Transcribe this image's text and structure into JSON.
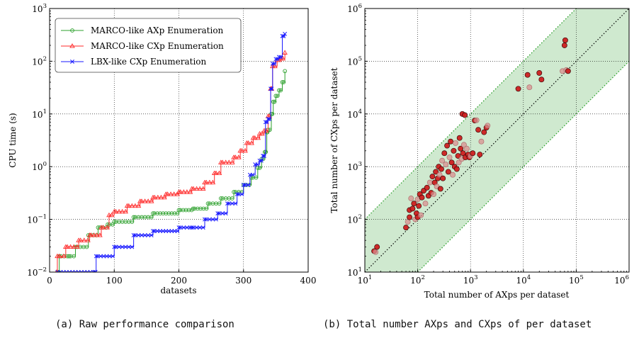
{
  "captions": {
    "a": "(a) Raw performance comparison",
    "b": "(b) Total number AXps and CXps of per dataset"
  },
  "chart_data": [
    {
      "type": "line",
      "xlabel": "datasets",
      "ylabel": "CPU time (s)",
      "xlim": [
        0,
        400
      ],
      "ylim": [
        0.01,
        1000
      ],
      "yscale": "log",
      "xticks": [
        "0",
        "100",
        "200",
        "300",
        "400"
      ],
      "yticks": [
        {
          "base": "10",
          "exp": "−2"
        },
        {
          "base": "10",
          "exp": "−1"
        },
        {
          "base": "10",
          "exp": "0"
        },
        {
          "base": "10",
          "exp": "1"
        },
        {
          "base": "10",
          "exp": "2"
        },
        {
          "base": "10",
          "exp": "3"
        }
      ],
      "grid": true,
      "legend_position": "top-left",
      "series": [
        {
          "name": "MARCO-like AXp Enumeration",
          "color": "#2ca02c",
          "marker": "circle",
          "points": [
            [
              10,
              0.01
            ],
            [
              14,
              0.01
            ],
            [
              15,
              0.02
            ],
            [
              30,
              0.02
            ],
            [
              40,
              0.03
            ],
            [
              60,
              0.05
            ],
            [
              75,
              0.07
            ],
            [
              90,
              0.08
            ],
            [
              100,
              0.09
            ],
            [
              130,
              0.11
            ],
            [
              160,
              0.13
            ],
            [
              200,
              0.15
            ],
            [
              222,
              0.16
            ],
            [
              245,
              0.2
            ],
            [
              265,
              0.25
            ],
            [
              285,
              0.33
            ],
            [
              300,
              0.45
            ],
            [
              312,
              0.62
            ],
            [
              322,
              0.95
            ],
            [
              328,
              1.4
            ],
            [
              333,
              1.9
            ],
            [
              336,
              4.5
            ],
            [
              338,
              5
            ],
            [
              343,
              10
            ],
            [
              346,
              17
            ],
            [
              350,
              22
            ],
            [
              355,
              28
            ],
            [
              360,
              40
            ],
            [
              364,
              65
            ]
          ]
        },
        {
          "name": "MARCO-like CXp Enumeration",
          "color": "#ff2a2a",
          "marker": "triangle",
          "points": [
            [
              10,
              0.01
            ],
            [
              12,
              0.02
            ],
            [
              25,
              0.03
            ],
            [
              45,
              0.04
            ],
            [
              62,
              0.05
            ],
            [
              80,
              0.07
            ],
            [
              92,
              0.12
            ],
            [
              100,
              0.14
            ],
            [
              120,
              0.18
            ],
            [
              140,
              0.22
            ],
            [
              160,
              0.26
            ],
            [
              180,
              0.3
            ],
            [
              200,
              0.33
            ],
            [
              220,
              0.38
            ],
            [
              240,
              0.5
            ],
            [
              255,
              0.75
            ],
            [
              265,
              1.2
            ],
            [
              285,
              1.5
            ],
            [
              295,
              2
            ],
            [
              305,
              2.8
            ],
            [
              315,
              3.5
            ],
            [
              325,
              4.2
            ],
            [
              332,
              4.8
            ],
            [
              338,
              9
            ],
            [
              342,
              30
            ],
            [
              345,
              80
            ],
            [
              352,
              105
            ],
            [
              358,
              112
            ],
            [
              364,
              145
            ]
          ]
        },
        {
          "name": "LBX-like CXp Enumeration",
          "color": "#1a1aff",
          "marker": "x",
          "points": [
            [
              10,
              0.01
            ],
            [
              70,
              0.01
            ],
            [
              72,
              0.02
            ],
            [
              100,
              0.03
            ],
            [
              130,
              0.05
            ],
            [
              160,
              0.06
            ],
            [
              200,
              0.07
            ],
            [
              220,
              0.07
            ],
            [
              240,
              0.1
            ],
            [
              260,
              0.13
            ],
            [
              275,
              0.2
            ],
            [
              290,
              0.3
            ],
            [
              300,
              0.45
            ],
            [
              310,
              0.7
            ],
            [
              318,
              1.1
            ],
            [
              325,
              1.3
            ],
            [
              330,
              1.6
            ],
            [
              334,
              7
            ],
            [
              338,
              8
            ],
            [
              342,
              30
            ],
            [
              345,
              90
            ],
            [
              350,
              110
            ],
            [
              355,
              120
            ],
            [
              360,
              300
            ],
            [
              364,
              330
            ]
          ]
        }
      ]
    },
    {
      "type": "scatter",
      "xlabel": "Total number of AXps per dataset",
      "ylabel": "Total number of CXps per dataset",
      "xlim": [
        10,
        1000000
      ],
      "ylim": [
        10,
        1000000
      ],
      "xscale": "log",
      "yscale": "log",
      "xticks": [
        {
          "base": "10",
          "exp": "1"
        },
        {
          "base": "10",
          "exp": "2"
        },
        {
          "base": "10",
          "exp": "3"
        },
        {
          "base": "10",
          "exp": "4"
        },
        {
          "base": "10",
          "exp": "5"
        },
        {
          "base": "10",
          "exp": "6"
        }
      ],
      "yticks": [
        {
          "base": "10",
          "exp": "1"
        },
        {
          "base": "10",
          "exp": "2"
        },
        {
          "base": "10",
          "exp": "3"
        },
        {
          "base": "10",
          "exp": "4"
        },
        {
          "base": "10",
          "exp": "5"
        },
        {
          "base": "10",
          "exp": "6"
        }
      ],
      "grid": true,
      "reference_lines": [
        "y = x",
        "y = 10x",
        "y = x/10"
      ],
      "shaded_band": "x/10 ≤ y ≤ 10x",
      "colors": {
        "band": "#cfe9cf",
        "band_edge": "#2ca02c",
        "point": "#cc1f1f"
      },
      "points": [
        [
          15,
          25
        ],
        [
          16,
          24
        ],
        [
          17,
          30
        ],
        [
          60,
          70
        ],
        [
          65,
          90
        ],
        [
          70,
          110
        ],
        [
          70,
          150
        ],
        [
          75,
          250
        ],
        [
          80,
          160
        ],
        [
          85,
          200
        ],
        [
          90,
          100
        ],
        [
          95,
          130
        ],
        [
          100,
          110
        ],
        [
          100,
          240
        ],
        [
          105,
          180
        ],
        [
          110,
          300
        ],
        [
          115,
          120
        ],
        [
          120,
          260
        ],
        [
          130,
          350
        ],
        [
          140,
          200
        ],
        [
          150,
          400
        ],
        [
          160,
          280
        ],
        [
          170,
          500
        ],
        [
          180,
          320
        ],
        [
          190,
          650
        ],
        [
          200,
          300
        ],
        [
          210,
          500
        ],
        [
          220,
          800
        ],
        [
          230,
          420
        ],
        [
          240,
          600
        ],
        [
          250,
          1000
        ],
        [
          260,
          700
        ],
        [
          270,
          380
        ],
        [
          280,
          900
        ],
        [
          290,
          1300
        ],
        [
          300,
          600
        ],
        [
          320,
          1800
        ],
        [
          340,
          1100
        ],
        [
          360,
          2500
        ],
        [
          380,
          800
        ],
        [
          400,
          1500
        ],
        [
          420,
          3000
        ],
        [
          440,
          1200
        ],
        [
          460,
          700
        ],
        [
          480,
          2000
        ],
        [
          500,
          1000
        ],
        [
          520,
          2800
        ],
        [
          550,
          900
        ],
        [
          580,
          1600
        ],
        [
          600,
          1200
        ],
        [
          620,
          3500
        ],
        [
          650,
          2200
        ],
        [
          680,
          1400
        ],
        [
          700,
          10000
        ],
        [
          720,
          1800
        ],
        [
          750,
          2600
        ],
        [
          780,
          9500
        ],
        [
          800,
          1500
        ],
        [
          850,
          2200
        ],
        [
          900,
          1700
        ],
        [
          950,
          1500
        ],
        [
          1000,
          1600
        ],
        [
          1100,
          1800
        ],
        [
          1200,
          7500
        ],
        [
          1300,
          7600
        ],
        [
          1400,
          5000
        ],
        [
          1500,
          1700
        ],
        [
          1600,
          3000
        ],
        [
          1800,
          4500
        ],
        [
          2000,
          5500
        ],
        [
          2100,
          6000
        ],
        [
          8000,
          30000
        ],
        [
          12000,
          55000
        ],
        [
          13000,
          32000
        ],
        [
          20000,
          60000
        ],
        [
          22000,
          45000
        ],
        [
          55000,
          65000
        ],
        [
          60000,
          200000
        ],
        [
          62000,
          250000
        ],
        [
          65000,
          68000
        ],
        [
          70000,
          65000
        ]
      ]
    }
  ]
}
